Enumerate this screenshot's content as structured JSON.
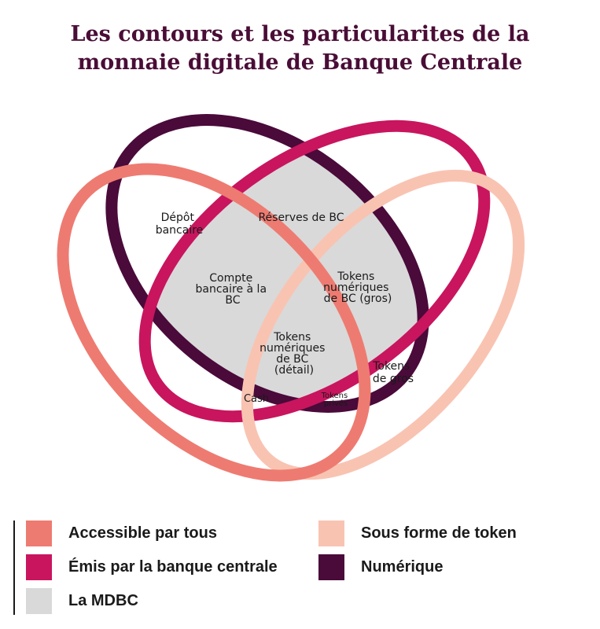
{
  "title": {
    "line1": "Les contours et les particularites de la",
    "line2": "monnaie digitale de Banque Centrale"
  },
  "colors": {
    "accessible": "#ee7b71",
    "emis_bc": "#c8155e",
    "mdbc": "#d9d9d9",
    "token": "#f9c3b2",
    "numerique": "#4a0a3a",
    "title": "#4a0d36"
  },
  "diagram": {
    "labels": {
      "depot_bancaire": [
        "Dépôt",
        "bancaire"
      ],
      "reserves_bc": [
        "Réserves de BC"
      ],
      "compte_bancaire_bc": [
        "Compte",
        "bancaire à la",
        "BC"
      ],
      "tokens_bc_gros": [
        "Tokens",
        "numériques",
        "de BC (gros)"
      ],
      "tokens_bc_detail": [
        "Tokens",
        "numériques",
        "de BC",
        "(détail)"
      ],
      "tokens_gros": [
        "Tokens",
        "de gros"
      ],
      "cash": [
        "Cash"
      ],
      "tokens_prives": [
        "Tokens",
        "privés"
      ]
    }
  },
  "legend": [
    {
      "label": "Accessible par tous",
      "color": "#ee7b71"
    },
    {
      "label": "Émis par la banque centrale",
      "color": "#c8155e"
    },
    {
      "label": "La MDBC",
      "color": "#d9d9d9"
    },
    {
      "label": "Sous forme de token",
      "color": "#f9c3b2"
    },
    {
      "label": "Numérique",
      "color": "#4a0a3a"
    }
  ]
}
